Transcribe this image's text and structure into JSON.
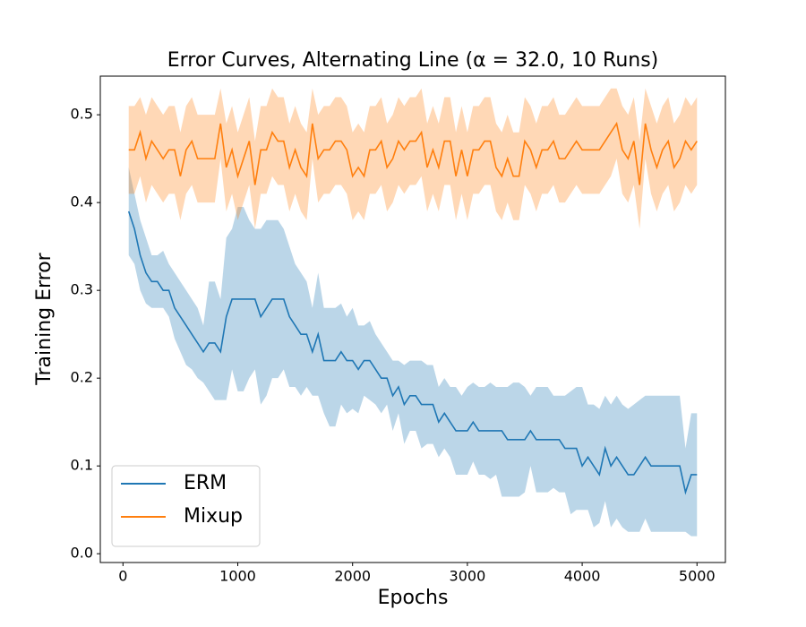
{
  "chart_data": {
    "type": "line",
    "title": "Error Curves, Alternating Line (α = 32.0, 10 Runs)",
    "x_label": "Epochs",
    "y_label": "Training Error",
    "x": [
      50,
      100,
      150,
      200,
      250,
      300,
      350,
      400,
      450,
      500,
      550,
      600,
      650,
      700,
      750,
      800,
      850,
      900,
      950,
      1000,
      1050,
      1100,
      1150,
      1200,
      1250,
      1300,
      1350,
      1400,
      1450,
      1500,
      1550,
      1600,
      1650,
      1700,
      1750,
      1800,
      1850,
      1900,
      1950,
      2000,
      2050,
      2100,
      2150,
      2200,
      2250,
      2300,
      2350,
      2400,
      2450,
      2500,
      2550,
      2600,
      2650,
      2700,
      2750,
      2800,
      2850,
      2900,
      2950,
      3000,
      3050,
      3100,
      3150,
      3200,
      3250,
      3300,
      3350,
      3400,
      3450,
      3500,
      3550,
      3600,
      3650,
      3700,
      3750,
      3800,
      3850,
      3900,
      3950,
      4000,
      4050,
      4100,
      4150,
      4200,
      4250,
      4300,
      4350,
      4400,
      4450,
      4500,
      4550,
      4600,
      4650,
      4700,
      4750,
      4800,
      4850,
      4900,
      4950,
      5000
    ],
    "series": [
      {
        "name": "ERM",
        "color": "#1f77b4",
        "values": [
          0.39,
          0.37,
          0.34,
          0.32,
          0.31,
          0.31,
          0.3,
          0.3,
          0.28,
          0.27,
          0.26,
          0.25,
          0.24,
          0.23,
          0.24,
          0.24,
          0.23,
          0.27,
          0.29,
          0.29,
          0.29,
          0.29,
          0.29,
          0.27,
          0.28,
          0.29,
          0.29,
          0.29,
          0.27,
          0.26,
          0.25,
          0.25,
          0.23,
          0.25,
          0.22,
          0.22,
          0.22,
          0.23,
          0.22,
          0.22,
          0.21,
          0.22,
          0.22,
          0.21,
          0.2,
          0.2,
          0.18,
          0.19,
          0.17,
          0.18,
          0.18,
          0.17,
          0.17,
          0.17,
          0.15,
          0.16,
          0.15,
          0.14,
          0.14,
          0.14,
          0.15,
          0.14,
          0.14,
          0.14,
          0.14,
          0.14,
          0.13,
          0.13,
          0.13,
          0.13,
          0.14,
          0.13,
          0.13,
          0.13,
          0.13,
          0.13,
          0.12,
          0.12,
          0.12,
          0.1,
          0.11,
          0.1,
          0.09,
          0.12,
          0.1,
          0.11,
          0.1,
          0.09,
          0.09,
          0.1,
          0.11,
          0.1,
          0.1,
          0.1,
          0.1,
          0.1,
          0.1,
          0.07,
          0.09,
          0.09
        ],
        "upper": [
          0.44,
          0.41,
          0.38,
          0.36,
          0.34,
          0.34,
          0.345,
          0.33,
          0.32,
          0.31,
          0.3,
          0.29,
          0.28,
          0.26,
          0.31,
          0.31,
          0.29,
          0.36,
          0.37,
          0.395,
          0.395,
          0.38,
          0.37,
          0.37,
          0.38,
          0.38,
          0.38,
          0.37,
          0.35,
          0.33,
          0.32,
          0.31,
          0.28,
          0.32,
          0.28,
          0.28,
          0.28,
          0.285,
          0.27,
          0.28,
          0.26,
          0.26,
          0.265,
          0.25,
          0.24,
          0.23,
          0.22,
          0.22,
          0.215,
          0.22,
          0.22,
          0.22,
          0.215,
          0.215,
          0.19,
          0.2,
          0.19,
          0.19,
          0.18,
          0.19,
          0.195,
          0.19,
          0.19,
          0.195,
          0.19,
          0.19,
          0.19,
          0.195,
          0.195,
          0.19,
          0.18,
          0.19,
          0.19,
          0.19,
          0.18,
          0.18,
          0.18,
          0.185,
          0.19,
          0.19,
          0.17,
          0.17,
          0.165,
          0.18,
          0.17,
          0.18,
          0.17,
          0.165,
          0.17,
          0.175,
          0.18,
          0.18,
          0.18,
          0.18,
          0.18,
          0.18,
          0.18,
          0.12,
          0.16,
          0.16
        ],
        "lower": [
          0.34,
          0.33,
          0.3,
          0.285,
          0.28,
          0.28,
          0.28,
          0.27,
          0.245,
          0.23,
          0.215,
          0.21,
          0.2,
          0.195,
          0.185,
          0.175,
          0.175,
          0.175,
          0.21,
          0.185,
          0.185,
          0.2,
          0.21,
          0.17,
          0.18,
          0.2,
          0.2,
          0.21,
          0.19,
          0.19,
          0.18,
          0.19,
          0.18,
          0.18,
          0.16,
          0.145,
          0.145,
          0.17,
          0.16,
          0.165,
          0.16,
          0.18,
          0.175,
          0.17,
          0.16,
          0.17,
          0.14,
          0.16,
          0.125,
          0.14,
          0.14,
          0.12,
          0.125,
          0.125,
          0.11,
          0.12,
          0.11,
          0.09,
          0.09,
          0.09,
          0.105,
          0.09,
          0.09,
          0.085,
          0.09,
          0.065,
          0.065,
          0.065,
          0.065,
          0.07,
          0.1,
          0.07,
          0.07,
          0.07,
          0.075,
          0.07,
          0.07,
          0.045,
          0.05,
          0.05,
          0.05,
          0.03,
          0.035,
          0.06,
          0.03,
          0.04,
          0.03,
          0.025,
          0.025,
          0.025,
          0.04,
          0.025,
          0.025,
          0.025,
          0.025,
          0.025,
          0.025,
          0.025,
          0.02,
          0.02
        ]
      },
      {
        "name": "Mixup",
        "color": "#ff7f0e",
        "values": [
          0.46,
          0.46,
          0.48,
          0.45,
          0.47,
          0.46,
          0.45,
          0.46,
          0.46,
          0.43,
          0.46,
          0.47,
          0.45,
          0.45,
          0.45,
          0.45,
          0.49,
          0.44,
          0.46,
          0.43,
          0.45,
          0.47,
          0.42,
          0.46,
          0.46,
          0.48,
          0.47,
          0.47,
          0.44,
          0.46,
          0.44,
          0.43,
          0.49,
          0.45,
          0.46,
          0.46,
          0.47,
          0.47,
          0.46,
          0.43,
          0.44,
          0.43,
          0.46,
          0.46,
          0.47,
          0.44,
          0.45,
          0.47,
          0.46,
          0.47,
          0.47,
          0.48,
          0.44,
          0.46,
          0.44,
          0.47,
          0.47,
          0.43,
          0.46,
          0.43,
          0.46,
          0.46,
          0.47,
          0.47,
          0.44,
          0.43,
          0.45,
          0.43,
          0.43,
          0.47,
          0.46,
          0.44,
          0.46,
          0.46,
          0.47,
          0.45,
          0.45,
          0.46,
          0.47,
          0.46,
          0.46,
          0.46,
          0.46,
          0.47,
          0.48,
          0.49,
          0.46,
          0.45,
          0.47,
          0.42,
          0.49,
          0.46,
          0.44,
          0.46,
          0.47,
          0.44,
          0.45,
          0.47,
          0.46,
          0.47
        ],
        "upper": [
          0.51,
          0.51,
          0.52,
          0.5,
          0.52,
          0.51,
          0.5,
          0.51,
          0.51,
          0.48,
          0.51,
          0.52,
          0.5,
          0.5,
          0.5,
          0.5,
          0.53,
          0.49,
          0.51,
          0.48,
          0.5,
          0.52,
          0.47,
          0.51,
          0.51,
          0.53,
          0.52,
          0.52,
          0.49,
          0.51,
          0.49,
          0.48,
          0.53,
          0.5,
          0.51,
          0.51,
          0.52,
          0.52,
          0.51,
          0.48,
          0.49,
          0.48,
          0.51,
          0.51,
          0.52,
          0.49,
          0.5,
          0.52,
          0.51,
          0.52,
          0.52,
          0.53,
          0.49,
          0.51,
          0.49,
          0.52,
          0.52,
          0.48,
          0.51,
          0.48,
          0.51,
          0.51,
          0.52,
          0.52,
          0.49,
          0.48,
          0.5,
          0.48,
          0.48,
          0.52,
          0.51,
          0.49,
          0.51,
          0.51,
          0.52,
          0.5,
          0.5,
          0.51,
          0.52,
          0.51,
          0.51,
          0.51,
          0.51,
          0.52,
          0.53,
          0.53,
          0.51,
          0.5,
          0.52,
          0.47,
          0.53,
          0.51,
          0.49,
          0.51,
          0.52,
          0.49,
          0.5,
          0.52,
          0.51,
          0.52
        ],
        "lower": [
          0.41,
          0.41,
          0.43,
          0.4,
          0.42,
          0.41,
          0.4,
          0.41,
          0.41,
          0.38,
          0.41,
          0.42,
          0.4,
          0.4,
          0.4,
          0.4,
          0.45,
          0.39,
          0.41,
          0.38,
          0.4,
          0.42,
          0.37,
          0.41,
          0.41,
          0.43,
          0.42,
          0.42,
          0.39,
          0.41,
          0.39,
          0.38,
          0.45,
          0.4,
          0.41,
          0.41,
          0.42,
          0.42,
          0.41,
          0.38,
          0.39,
          0.38,
          0.41,
          0.41,
          0.42,
          0.39,
          0.4,
          0.42,
          0.41,
          0.42,
          0.42,
          0.43,
          0.39,
          0.41,
          0.39,
          0.42,
          0.42,
          0.38,
          0.41,
          0.38,
          0.41,
          0.41,
          0.42,
          0.42,
          0.39,
          0.38,
          0.4,
          0.38,
          0.38,
          0.42,
          0.41,
          0.39,
          0.41,
          0.41,
          0.42,
          0.4,
          0.4,
          0.41,
          0.42,
          0.41,
          0.41,
          0.41,
          0.41,
          0.42,
          0.43,
          0.45,
          0.41,
          0.4,
          0.42,
          0.37,
          0.45,
          0.41,
          0.39,
          0.41,
          0.42,
          0.39,
          0.4,
          0.42,
          0.41,
          0.42
        ]
      }
    ],
    "xlim": [
      -197.5,
      5247.5
    ],
    "xticks": [
      0,
      1000,
      2000,
      3000,
      4000,
      5000
    ],
    "ylim": [
      -0.01,
      0.544
    ],
    "yticks": [
      {
        "value": 0,
        "label": "0.0"
      },
      0.1,
      0.2,
      0.3,
      0.4,
      0.5
    ],
    "band_opacity": 0.3,
    "legend": "lower left"
  }
}
